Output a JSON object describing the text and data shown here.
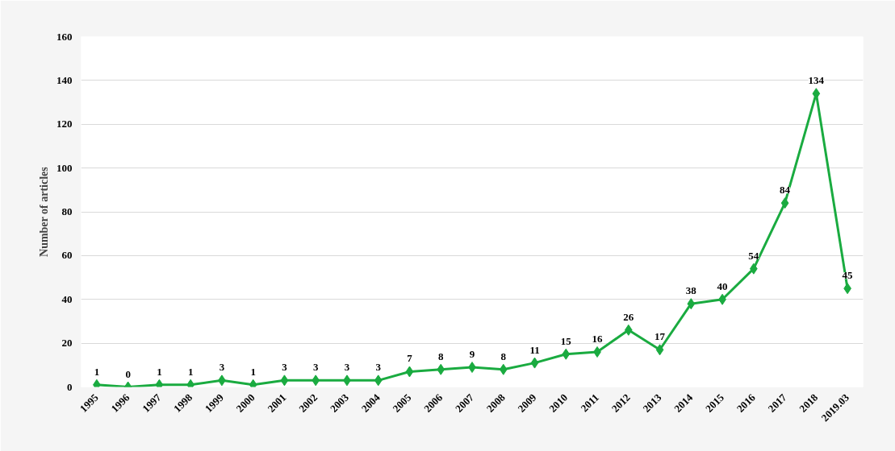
{
  "chart_data": {
    "type": "line",
    "ylabel": "Number of articles",
    "categories": [
      "1995",
      "1996",
      "1997",
      "1998",
      "1999",
      "2000",
      "2001",
      "2002",
      "2003",
      "2004",
      "2005",
      "2006",
      "2007",
      "2008",
      "2009",
      "2010",
      "2011",
      "2012",
      "2013",
      "2014",
      "2015",
      "2016",
      "2017",
      "2018",
      "2019.03"
    ],
    "series": [
      {
        "color": "#1aab40",
        "values": [
          1,
          0,
          1,
          1,
          3,
          1,
          3,
          3,
          3,
          3,
          7,
          8,
          9,
          8,
          11,
          15,
          16,
          26,
          17,
          38,
          40,
          54,
          84,
          134,
          45
        ]
      }
    ],
    "ylim": [
      0,
      160
    ],
    "yticks": [
      0,
      20,
      40,
      60,
      80,
      100,
      120,
      140,
      160
    ],
    "grid": "y",
    "marker": "diamond",
    "line_style": "solid",
    "data_labels": true
  }
}
